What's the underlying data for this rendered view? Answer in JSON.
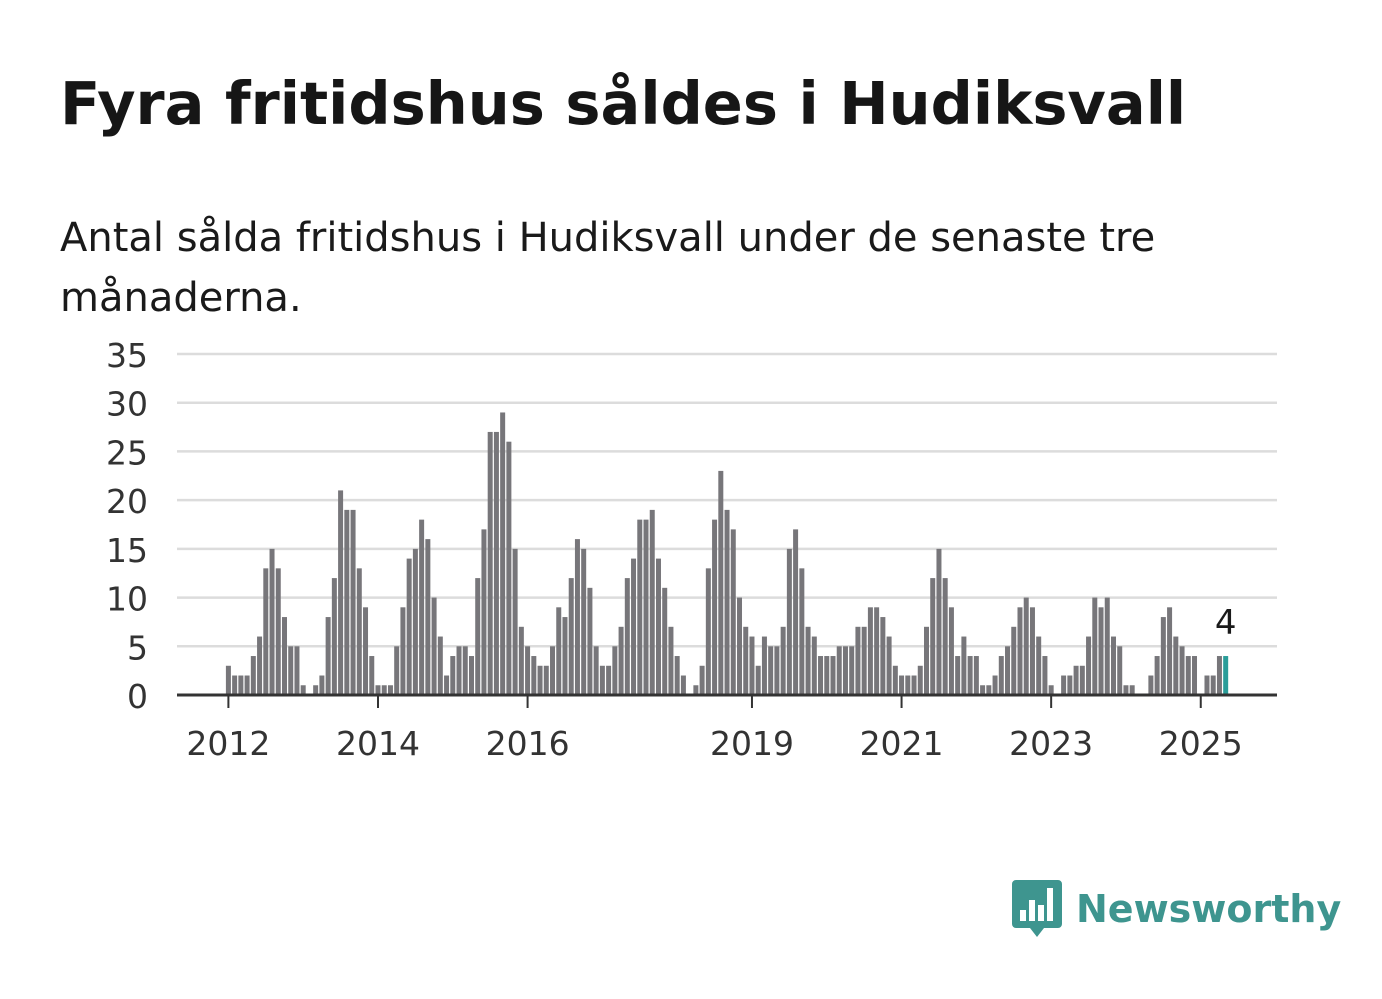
{
  "title": "Fyra fritidshus såldes i Hudiksvall",
  "subtitle": "Antal sålda fritidshus i Hudiksvall under de senaste tre månaderna.",
  "brand": {
    "name": "Newsworthy",
    "logo_icon": "bar-chart-speech-bubble-icon"
  },
  "colors": {
    "bar": "#77767a",
    "highlight": "#2a9d99",
    "grid": "#dcdcdc",
    "axis": "#333333",
    "brand": "#3e958f"
  },
  "chart_data": {
    "type": "bar",
    "ylim": [
      0,
      35
    ],
    "yticks": [
      "0",
      "5",
      "10",
      "15",
      "20",
      "25",
      "30",
      "35"
    ],
    "xticks": [
      "2012",
      "2014",
      "2016",
      "2019",
      "2021",
      "2023",
      "2025"
    ],
    "first_month": "2012-01",
    "grid": true,
    "highlight_label": "4",
    "values": [
      3,
      2,
      2,
      2,
      4,
      6,
      13,
      15,
      13,
      8,
      5,
      5,
      1,
      0,
      1,
      2,
      8,
      12,
      21,
      19,
      19,
      13,
      9,
      4,
      1,
      1,
      1,
      5,
      9,
      14,
      15,
      18,
      16,
      10,
      6,
      2,
      4,
      5,
      5,
      4,
      12,
      17,
      27,
      27,
      29,
      26,
      15,
      7,
      5,
      4,
      3,
      3,
      5,
      9,
      8,
      12,
      16,
      15,
      11,
      5,
      3,
      3,
      5,
      7,
      12,
      14,
      18,
      18,
      19,
      14,
      11,
      7,
      4,
      2,
      0,
      1,
      3,
      13,
      18,
      23,
      19,
      17,
      10,
      7,
      6,
      3,
      6,
      5,
      5,
      7,
      15,
      17,
      13,
      7,
      6,
      4,
      4,
      4,
      5,
      5,
      5,
      7,
      7,
      9,
      9,
      8,
      6,
      3,
      2,
      2,
      2,
      3,
      7,
      12,
      15,
      12,
      9,
      4,
      6,
      4,
      4,
      1,
      1,
      2,
      4,
      5,
      7,
      9,
      10,
      9,
      6,
      4,
      1,
      0,
      2,
      2,
      3,
      3,
      6,
      10,
      9,
      10,
      6,
      5,
      1,
      1,
      0,
      0,
      2,
      4,
      8,
      9,
      6,
      5,
      4,
      4,
      0,
      2,
      2,
      4,
      4
    ]
  }
}
